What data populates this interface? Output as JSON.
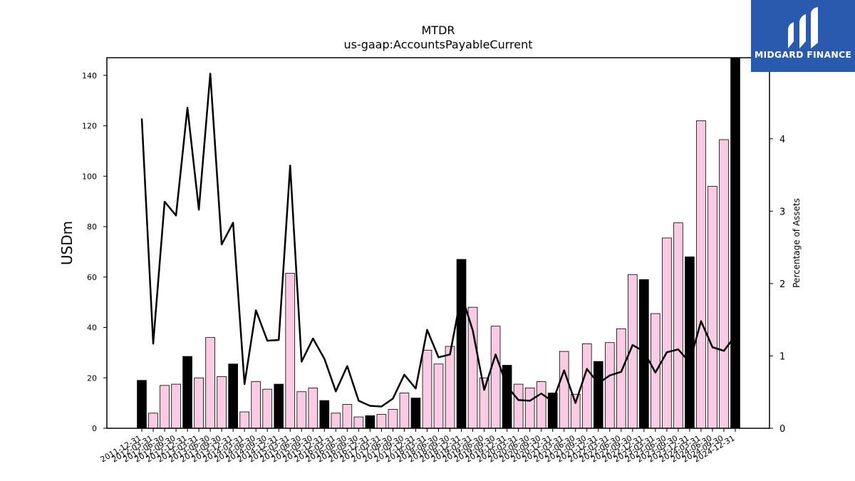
{
  "chart_data": {
    "type": "bar",
    "title": "MTDR",
    "subtitle": "us-gaap:AccountsPayableCurrent",
    "ylabel": "USDm",
    "y2label": "Percentage of Assets",
    "ylim": [
      0,
      147
    ],
    "y2lim": [
      0,
      5.12
    ],
    "yticks": [
      0,
      20,
      40,
      60,
      80,
      100,
      120,
      140
    ],
    "y2ticks": [
      0,
      1,
      2,
      3,
      4
    ],
    "categories": [
      "2011-12-31",
      "2012-03-31",
      "2012-06-30",
      "2012-09-30",
      "2012-12-31",
      "2013-03-31",
      "2013-06-30",
      "2013-09-30",
      "2013-12-31",
      "2014-03-31",
      "2014-06-30",
      "2014-09-30",
      "2014-12-31",
      "2015-03-31",
      "2015-06-30",
      "2015-09-30",
      "2015-12-31",
      "2016-03-31",
      "2016-06-30",
      "2016-09-30",
      "2016-12-31",
      "2017-03-31",
      "2017-06-30",
      "2017-09-30",
      "2017-12-31",
      "2018-03-31",
      "2018-06-30",
      "2018-09-30",
      "2018-12-31",
      "2019-03-31",
      "2019-06-30",
      "2019-09-30",
      "2019-12-31",
      "2020-03-31",
      "2020-06-30",
      "2020-09-30",
      "2020-12-31",
      "2021-03-31",
      "2021-06-30",
      "2021-09-30",
      "2021-12-31",
      "2022-03-31",
      "2022-06-30",
      "2022-09-30",
      "2022-12-31",
      "2023-03-31",
      "2023-06-30",
      "2023-09-30",
      "2023-12-31",
      "2024-03-31",
      "2024-06-30",
      "2024-09-30",
      "2024-12-31"
    ],
    "series": [
      {
        "type": "bar",
        "values": [
          19,
          6,
          17,
          17.5,
          28.5,
          20,
          36,
          20.5,
          25.5,
          6.5,
          18.5,
          15.5,
          17.5,
          61.5,
          14.5,
          16,
          11,
          6,
          9.5,
          4.5,
          5,
          5.5,
          7.5,
          14,
          12,
          31,
          25.5,
          32.5,
          67,
          48,
          20,
          40.5,
          25,
          17.5,
          16,
          18.5,
          14,
          30.5,
          13.5,
          33.5,
          26.5,
          34,
          39.5,
          61,
          59,
          45.5,
          75.5,
          81.5,
          68,
          122,
          96,
          114.5,
          147
        ],
        "highlight_color": "#000000",
        "default_color": "#f9cce3"
      },
      {
        "type": "line",
        "axis": "right",
        "color": "#000000",
        "values": [
          4.28,
          1.17,
          3.13,
          2.94,
          4.43,
          3.02,
          4.9,
          2.54,
          2.84,
          0.61,
          1.63,
          1.21,
          1.22,
          3.63,
          0.92,
          1.24,
          0.96,
          0.51,
          0.86,
          0.38,
          0.31,
          0.3,
          0.41,
          0.74,
          0.55,
          1.36,
          0.98,
          1.02,
          1.85,
          1.35,
          0.53,
          1.02,
          0.58,
          0.39,
          0.38,
          0.48,
          0.37,
          0.8,
          0.35,
          0.82,
          0.62,
          0.73,
          0.78,
          1.15,
          1.06,
          0.77,
          1.05,
          1.09,
          0.91,
          1.48,
          1.12,
          1.07,
          1.28
        ]
      }
    ]
  },
  "logo": {
    "text": "MIDGARD FINANCE",
    "background": "#2a5aad"
  }
}
